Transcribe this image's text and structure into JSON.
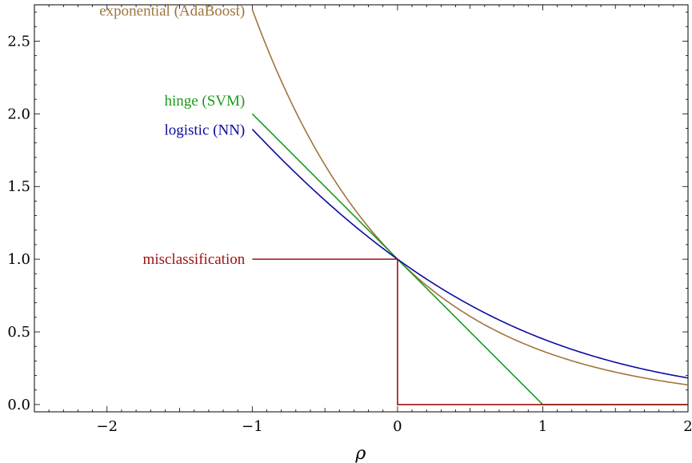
{
  "chart_data": {
    "type": "line",
    "title": "",
    "xlabel": "ρ",
    "ylabel": "",
    "xlim": [
      -2.5,
      2
    ],
    "ylim": [
      -0.05,
      2.75
    ],
    "grid": false,
    "x_ticks": [
      {
        "value": -2,
        "label": "−2"
      },
      {
        "value": -1,
        "label": "−1"
      },
      {
        "value": 0,
        "label": "0"
      },
      {
        "value": 1,
        "label": "1"
      },
      {
        "value": 2,
        "label": "2"
      }
    ],
    "y_ticks": [
      {
        "value": 0.0,
        "label": "0.0"
      },
      {
        "value": 0.5,
        "label": "0.5"
      },
      {
        "value": 1.0,
        "label": "1.0"
      },
      {
        "value": 1.5,
        "label": "1.5"
      },
      {
        "value": 2.0,
        "label": "2.0"
      },
      {
        "value": 2.5,
        "label": "2.5"
      }
    ],
    "series": [
      {
        "name": "exponential (AdaBoost)",
        "color": "#a0743e",
        "function": "exp(-x)",
        "x_range": [
          -1,
          2
        ],
        "points": [
          [
            -1,
            2.718
          ],
          [
            -0.5,
            1.649
          ],
          [
            0,
            1.0
          ],
          [
            0.5,
            0.607
          ],
          [
            1,
            0.368
          ],
          [
            1.5,
            0.223
          ],
          [
            2,
            0.135
          ]
        ]
      },
      {
        "name": "hinge (SVM)",
        "color": "#1c9a1c",
        "function": "max(0, 1-x)",
        "x_range": [
          -1,
          2
        ],
        "points": [
          [
            -1,
            2.0
          ],
          [
            0,
            1.0
          ],
          [
            1,
            0.0
          ],
          [
            2,
            0.0
          ]
        ]
      },
      {
        "name": "logistic (NN)",
        "color": "#0a0aa0",
        "function": "log2(1+exp(-x))",
        "x_range": [
          -1,
          2
        ],
        "points": [
          [
            -1,
            1.899
          ],
          [
            -0.5,
            1.401
          ],
          [
            0,
            1.0
          ],
          [
            0.5,
            0.684
          ],
          [
            1,
            0.452
          ],
          [
            1.5,
            0.29
          ],
          [
            2,
            0.182
          ]
        ]
      },
      {
        "name": "misclassification",
        "color": "#a01010",
        "function": "step",
        "x_range": [
          -1,
          2
        ],
        "points": [
          [
            -1,
            1.0
          ],
          [
            0,
            1.0
          ],
          [
            0,
            0.0
          ],
          [
            2,
            0.0
          ]
        ]
      }
    ]
  }
}
